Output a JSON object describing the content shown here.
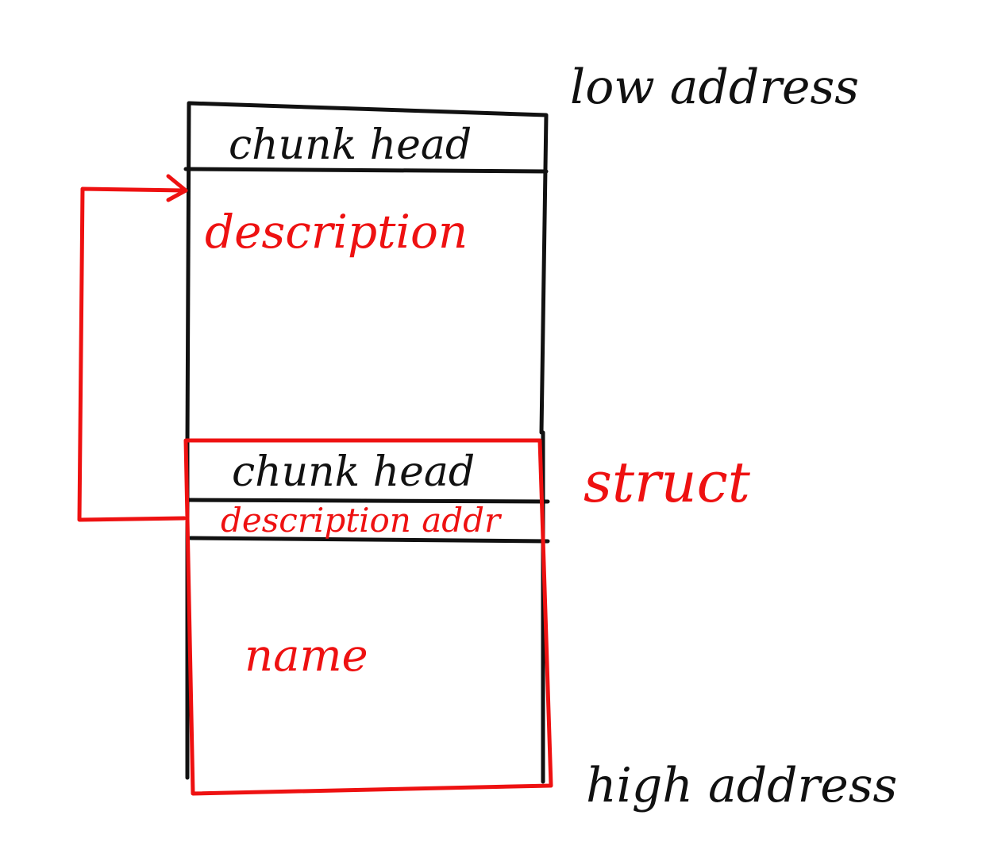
{
  "labels": {
    "low_address": "low address",
    "high_address": "high address",
    "struct": "struct"
  },
  "chunk1": {
    "head": "chunk head",
    "body": "description"
  },
  "chunk2": {
    "head": "chunk head",
    "pointer_field": "description addr",
    "body": "name"
  },
  "colors": {
    "ink": "#111111",
    "highlight": "#ee1111",
    "background": "#ffffff"
  }
}
